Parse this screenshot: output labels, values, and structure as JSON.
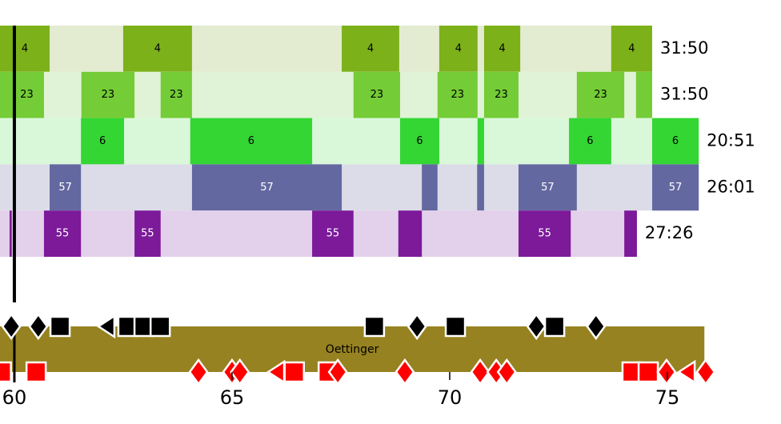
{
  "chart_data": {
    "type": "shift",
    "xlim": [
      59.67,
      77.61
    ],
    "xticks": [
      60,
      65,
      70,
      75
    ],
    "marker": 60,
    "rows": [
      {
        "name": "4",
        "total": "31:50",
        "color": "#7cb11a",
        "light": "#e3ebd0",
        "end": 74.65,
        "shifts": [
          [
            59.67,
            60.81
          ],
          [
            62.5,
            64.08
          ],
          [
            67.52,
            68.84
          ],
          [
            69.76,
            70.64
          ],
          [
            70.79,
            71.62
          ],
          [
            73.71,
            74.65
          ]
        ]
      },
      {
        "name": "23",
        "total": "31:50",
        "color": "#74cc36",
        "light": "#e0f3d6",
        "end": 74.65,
        "shifts": [
          [
            59.67,
            59.89
          ],
          [
            59.89,
            60.68
          ],
          [
            61.54,
            62.76
          ],
          [
            63.36,
            64.08
          ],
          [
            67.79,
            68.86
          ],
          [
            69.72,
            70.64
          ],
          [
            70.79,
            71.58
          ],
          [
            72.92,
            74.01
          ],
          [
            74.28,
            74.65
          ]
        ]
      },
      {
        "name": "6",
        "total": "20:51",
        "color": "#33d633",
        "light": "#d9f7d9",
        "end": 75.72,
        "shifts": [
          [
            61.53,
            62.52
          ],
          [
            64.04,
            66.84
          ],
          [
            68.86,
            69.76
          ],
          [
            70.64,
            70.79
          ],
          [
            72.74,
            73.71
          ],
          [
            74.65,
            75.72
          ]
        ]
      },
      {
        "name": "57",
        "total": "26:01",
        "color": "#6468a0",
        "light": "#dcdce8",
        "end": 75.72,
        "shifts": [
          [
            60.81,
            61.53
          ],
          [
            64.08,
            67.52
          ],
          [
            69.36,
            69.72
          ],
          [
            70.63,
            70.79
          ],
          [
            71.58,
            72.92
          ],
          [
            74.65,
            75.72
          ]
        ]
      },
      {
        "name": "55",
        "total": "27:26",
        "color": "#7c1a9a",
        "light": "#e3d0ea",
        "end": 74.3,
        "shifts": [
          [
            59.89,
            59.94
          ],
          [
            60.68,
            61.53
          ],
          [
            62.76,
            63.36
          ],
          [
            66.84,
            67.79
          ],
          [
            68.82,
            69.36
          ],
          [
            71.58,
            72.78
          ],
          [
            74.01,
            74.3
          ]
        ]
      }
    ],
    "band": {
      "label": "Oettinger",
      "color": "#968220",
      "end": 75.85
    },
    "events": [
      {
        "team": "away",
        "color": "#000000",
        "x": [
          59.93,
          60.55,
          61.05,
          62.15,
          62.61,
          62.98,
          63.35,
          68.27,
          69.25,
          70.13,
          71.99,
          72.41,
          73.36
        ],
        "shapes": [
          "diamond",
          "diamond",
          "square",
          "triangle",
          "square",
          "square",
          "square",
          "square",
          "diamond",
          "square",
          "diamond",
          "square",
          "diamond"
        ]
      },
      {
        "team": "home",
        "color": "#ff0000",
        "x": [
          59.7,
          60.5,
          64.23,
          65.0,
          65.18,
          66.05,
          66.43,
          67.21,
          67.43,
          68.97,
          70.7,
          71.07,
          71.31,
          74.19,
          74.56,
          74.98,
          75.48,
          75.88
        ],
        "shapes": [
          "square",
          "square",
          "diamond",
          "diamond",
          "diamond",
          "triangle",
          "square",
          "square",
          "diamond",
          "diamond",
          "diamond",
          "diamond",
          "diamond",
          "square",
          "square",
          "diamond",
          "triangle",
          "diamond"
        ]
      }
    ]
  }
}
